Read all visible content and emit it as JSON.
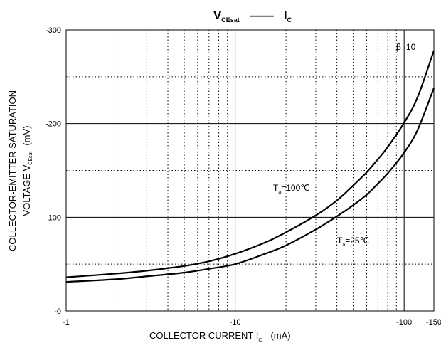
{
  "chart_data": {
    "type": "line",
    "title": {
      "main": "V",
      "main_sub": "CEsat",
      "dash": "——",
      "second": "I",
      "second_sub": "C"
    },
    "xlabel": {
      "text": "COLLECTOR CURRENT   I",
      "sub": "C",
      "unit": "(mA)"
    },
    "ylabel": {
      "line1": "COLLECTOR-EMITTER SATURATION",
      "line2_prefix": "VOLTAGE   V",
      "line2_sub": "CEsat",
      "line2_unit": "(mV)"
    },
    "x_scale": "log",
    "xlim": [
      -1,
      -150
    ],
    "ylim": [
      0,
      -300
    ],
    "x_ticks": [
      -1,
      -10,
      -100,
      -150
    ],
    "x_tick_labels": [
      "-1",
      "-10",
      "-100",
      "-150"
    ],
    "y_ticks": [
      0,
      -100,
      -200,
      -300
    ],
    "y_tick_labels": [
      "-0",
      "-100",
      "-200",
      "-300"
    ],
    "grid": true,
    "annotations": [
      {
        "text": "β=10",
        "sub": "",
        "suffix": ""
      },
      {
        "text": "T",
        "sub": "a",
        "suffix": "=100℃"
      },
      {
        "text": "T",
        "sub": "a",
        "suffix": "=25℃"
      }
    ],
    "series": [
      {
        "name": "Ta=100℃",
        "x": [
          -1,
          -2,
          -3,
          -5,
          -7,
          -10,
          -15,
          -20,
          -30,
          -40,
          -50,
          -60,
          -70,
          -80,
          -100,
          -120,
          -150
        ],
        "y": [
          -36,
          -40,
          -43,
          -48,
          -53,
          -61,
          -73,
          -84,
          -102,
          -118,
          -134,
          -148,
          -162,
          -175,
          -201,
          -228,
          -278
        ]
      },
      {
        "name": "Ta=25℃",
        "x": [
          -1,
          -2,
          -3,
          -5,
          -7,
          -10,
          -15,
          -20,
          -30,
          -40,
          -50,
          -60,
          -70,
          -80,
          -100,
          -120,
          -150
        ],
        "y": [
          -31,
          -34,
          -37,
          -41,
          -45,
          -50,
          -61,
          -70,
          -87,
          -101,
          -113,
          -124,
          -136,
          -147,
          -169,
          -193,
          -238
        ]
      }
    ]
  }
}
